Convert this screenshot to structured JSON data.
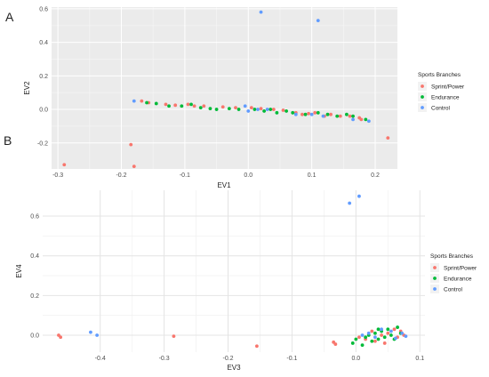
{
  "chart_data": [
    {
      "panel_label": "A",
      "type": "scatter",
      "xlabel": "EV1",
      "ylabel": "EV2",
      "xlim": [
        -0.31,
        0.235
      ],
      "ylim": [
        -0.355,
        0.61
      ],
      "xticks": [
        -0.3,
        -0.2,
        -0.1,
        0.0,
        0.1,
        0.2
      ],
      "xtick_labels": [
        "-0.3",
        "-0.2",
        "-0.1",
        "0.0",
        "0.1",
        "0.2"
      ],
      "yticks": [
        -0.2,
        0.0,
        0.2,
        0.4,
        0.6
      ],
      "ytick_labels": [
        "-0.2",
        "0.0",
        "0.2",
        "0.4",
        "0.6"
      ],
      "grid": true,
      "legend": {
        "title": "Sports Branches",
        "placement": "right",
        "entries": [
          "Sprint/Power",
          "Endurance",
          "Control"
        ]
      },
      "series": [
        {
          "name": "Sprint/Power",
          "color": "#F8766D",
          "points": [
            [
              -0.29,
              -0.33
            ],
            [
              -0.185,
              -0.21
            ],
            [
              -0.18,
              -0.34
            ],
            [
              -0.168,
              0.05
            ],
            [
              -0.157,
              0.04
            ],
            [
              -0.13,
              0.03
            ],
            [
              -0.115,
              0.025
            ],
            [
              -0.095,
              0.03
            ],
            [
              -0.085,
              0.02
            ],
            [
              -0.07,
              0.02
            ],
            [
              -0.04,
              0.015
            ],
            [
              -0.02,
              0.01
            ],
            [
              0.005,
              0.01
            ],
            [
              0.02,
              0.005
            ],
            [
              0.04,
              0.0
            ],
            [
              0.055,
              -0.005
            ],
            [
              0.075,
              -0.02
            ],
            [
              0.085,
              -0.03
            ],
            [
              0.095,
              -0.025
            ],
            [
              0.105,
              -0.02
            ],
            [
              0.12,
              -0.04
            ],
            [
              0.13,
              -0.03
            ],
            [
              0.145,
              -0.04
            ],
            [
              0.16,
              -0.04
            ],
            [
              0.175,
              -0.05
            ],
            [
              0.178,
              -0.06
            ],
            [
              0.22,
              -0.17
            ]
          ]
        },
        {
          "name": "Endurance",
          "color": "#00BA38",
          "points": [
            [
              -0.16,
              0.04
            ],
            [
              -0.145,
              0.035
            ],
            [
              -0.125,
              0.02
            ],
            [
              -0.105,
              0.02
            ],
            [
              -0.09,
              0.03
            ],
            [
              -0.075,
              0.01
            ],
            [
              -0.06,
              0.005
            ],
            [
              -0.05,
              0.0
            ],
            [
              -0.03,
              0.005
            ],
            [
              -0.015,
              0.0
            ],
            [
              0.01,
              0.0
            ],
            [
              0.025,
              -0.01
            ],
            [
              0.035,
              0.0
            ],
            [
              0.045,
              -0.02
            ],
            [
              0.06,
              -0.01
            ],
            [
              0.07,
              -0.02
            ],
            [
              0.09,
              -0.03
            ],
            [
              0.11,
              -0.02
            ],
            [
              0.125,
              -0.03
            ],
            [
              0.14,
              -0.04
            ],
            [
              0.155,
              -0.03
            ],
            [
              0.165,
              -0.04
            ],
            [
              0.185,
              -0.06
            ]
          ]
        },
        {
          "name": "Control",
          "color": "#619CFF",
          "points": [
            [
              0.02,
              0.58
            ],
            [
              0.11,
              0.53
            ],
            [
              -0.18,
              0.05
            ],
            [
              -0.005,
              0.02
            ],
            [
              0.0,
              -0.01
            ],
            [
              0.015,
              0.0
            ],
            [
              0.03,
              0.0
            ],
            [
              0.075,
              -0.03
            ],
            [
              0.1,
              -0.03
            ],
            [
              0.118,
              -0.04
            ],
            [
              0.165,
              -0.06
            ],
            [
              0.19,
              -0.07
            ]
          ]
        }
      ]
    },
    {
      "panel_label": "B",
      "type": "scatter",
      "xlabel": "EV3",
      "ylabel": "EV4",
      "xlim": [
        -0.49,
        0.108
      ],
      "ylim": [
        -0.085,
        0.73
      ],
      "xticks": [
        -0.4,
        -0.3,
        -0.2,
        -0.1,
        0.0,
        0.1
      ],
      "xtick_labels": [
        "-0.4",
        "-0.3",
        "-0.2",
        "-0.1",
        "0.0",
        "0.1"
      ],
      "yticks": [
        0.0,
        0.2,
        0.4,
        0.6
      ],
      "ytick_labels": [
        "0.0",
        "0.2",
        "0.4",
        "0.6"
      ],
      "grid": true,
      "legend": {
        "title": "Sports Branches",
        "placement": "right",
        "entries": [
          "Sprint/Power",
          "Endurance",
          "Control"
        ]
      },
      "series": [
        {
          "name": "Sprint/Power",
          "color": "#F8766D",
          "points": [
            [
              -0.465,
              0.0
            ],
            [
              -0.462,
              -0.01
            ],
            [
              -0.285,
              -0.005
            ],
            [
              -0.155,
              -0.055
            ],
            [
              -0.035,
              -0.035
            ],
            [
              -0.032,
              -0.045
            ],
            [
              0.005,
              -0.01
            ],
            [
              0.015,
              -0.02
            ],
            [
              0.025,
              0.02
            ],
            [
              0.04,
              0.0
            ],
            [
              0.05,
              0.01
            ],
            [
              0.06,
              0.03
            ],
            [
              0.065,
              -0.01
            ],
            [
              0.07,
              0.02
            ],
            [
              0.075,
              0.0
            ],
            [
              0.03,
              -0.03
            ],
            [
              0.045,
              -0.04
            ]
          ]
        },
        {
          "name": "Endurance",
          "color": "#00BA38",
          "points": [
            [
              -0.005,
              -0.04
            ],
            [
              0.0,
              -0.02
            ],
            [
              0.01,
              -0.05
            ],
            [
              0.02,
              0.0
            ],
            [
              0.025,
              -0.03
            ],
            [
              0.03,
              0.01
            ],
            [
              0.035,
              -0.02
            ],
            [
              0.04,
              0.02
            ],
            [
              0.045,
              -0.01
            ],
            [
              0.05,
              0.03
            ],
            [
              0.055,
              0.0
            ],
            [
              0.06,
              -0.02
            ],
            [
              0.065,
              0.04
            ],
            [
              0.07,
              0.01
            ],
            [
              0.015,
              -0.01
            ],
            [
              0.035,
              0.03
            ]
          ]
        },
        {
          "name": "Control",
          "color": "#619CFF",
          "points": [
            [
              -0.01,
              0.665
            ],
            [
              0.005,
              0.7
            ],
            [
              -0.415,
              0.015
            ],
            [
              -0.405,
              0.0
            ],
            [
              0.01,
              0.0
            ],
            [
              0.02,
              0.01
            ],
            [
              0.03,
              -0.01
            ],
            [
              0.04,
              0.03
            ],
            [
              0.055,
              0.02
            ],
            [
              0.062,
              -0.015
            ],
            [
              0.072,
              0.01
            ],
            [
              0.078,
              -0.005
            ]
          ]
        }
      ]
    }
  ]
}
